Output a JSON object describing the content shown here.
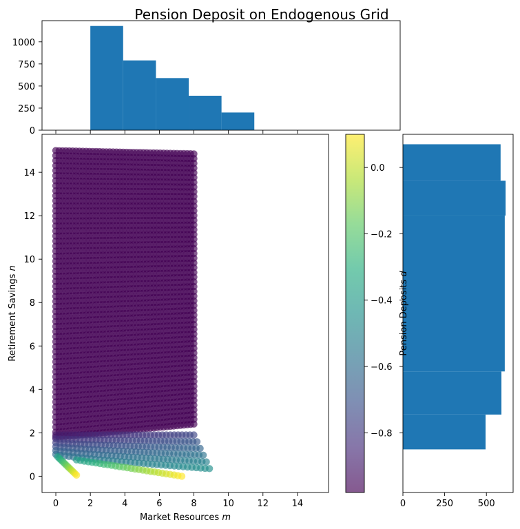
{
  "chart_data": {
    "title": "Pension Deposit on Endogenous Grid",
    "panels": [
      {
        "type": "scatter",
        "role": "main",
        "xlabel": "Market Resources m",
        "ylabel": "Retirement Savings n",
        "xlim": [
          -0.8,
          15.8
        ],
        "ylim": [
          -0.75,
          15.75
        ],
        "xticks": [
          "0",
          "2",
          "4",
          "6",
          "8",
          "10",
          "12",
          "14"
        ],
        "yticks": [
          "0",
          "2",
          "4",
          "6",
          "8",
          "10",
          "12",
          "14"
        ],
        "series": [
          {
            "color_value": -0.98,
            "points": [
              [
                0.0,
                15.0
              ],
              [
                0.0,
                2.0
              ],
              [
                8.0,
                2.0
              ],
              [
                8.0,
                14.9
              ]
            ]
          },
          {
            "color_value": -0.6,
            "points": [
              [
                0.0,
                1.0
              ],
              [
                2.0,
                0.8
              ],
              [
                4.0,
                0.65
              ],
              [
                6.0,
                0.5
              ],
              [
                8.0,
                0.4
              ],
              [
                8.9,
                0.35
              ]
            ]
          },
          {
            "color_value": 0.1,
            "points": [
              [
                0.4,
                0.55
              ],
              [
                0.8,
                0.3
              ],
              [
                1.2,
                0.05
              ],
              [
                4.0,
                0.35
              ],
              [
                6.0,
                0.1
              ],
              [
                7.3,
                0.0
              ]
            ]
          }
        ]
      },
      {
        "type": "bar",
        "role": "top-histogram",
        "bins": [
          [
            2.0,
            3.9
          ],
          [
            3.9,
            5.8
          ],
          [
            5.8,
            7.7
          ],
          [
            7.7,
            9.6
          ],
          [
            9.6,
            11.5
          ]
        ],
        "values": [
          1180,
          790,
          590,
          390,
          200
        ],
        "yticks": [
          "0",
          "250",
          "500",
          "750",
          "1000"
        ],
        "ylim": [
          0,
          1240
        ]
      },
      {
        "type": "bar",
        "role": "right-histogram",
        "orientation": "horizontal",
        "bins": [
          [
            -0.85,
            -0.745
          ],
          [
            -0.745,
            -0.615
          ],
          [
            -0.615,
            -0.145
          ],
          [
            -0.145,
            -0.04
          ],
          [
            -0.04,
            0.07
          ]
        ],
        "values": [
          495,
          590,
          610,
          615,
          585
        ],
        "xticks": [
          "0",
          "250",
          "500"
        ],
        "xlim": [
          0,
          660
        ]
      }
    ],
    "colorbar": {
      "label": "Pension Deposits d",
      "colormap": "viridis",
      "range": [
        -0.98,
        0.1
      ],
      "ticks": [
        "0.0",
        "−0.2",
        "−0.4",
        "−0.6",
        "−0.8"
      ]
    }
  }
}
